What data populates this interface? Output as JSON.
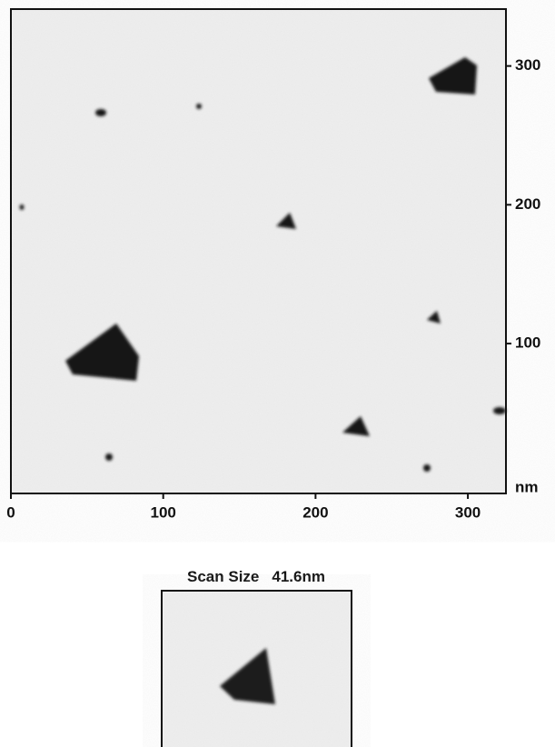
{
  "chart_data": {
    "type": "image",
    "xlim": [
      0,
      325
    ],
    "ylim": [
      -8,
      341
    ],
    "xticks": [
      0,
      100,
      200,
      300
    ],
    "yticks": [
      100,
      200,
      300
    ],
    "unit": "nm"
  },
  "inset": {
    "label": "Scan Size",
    "size": "41.6nm"
  }
}
